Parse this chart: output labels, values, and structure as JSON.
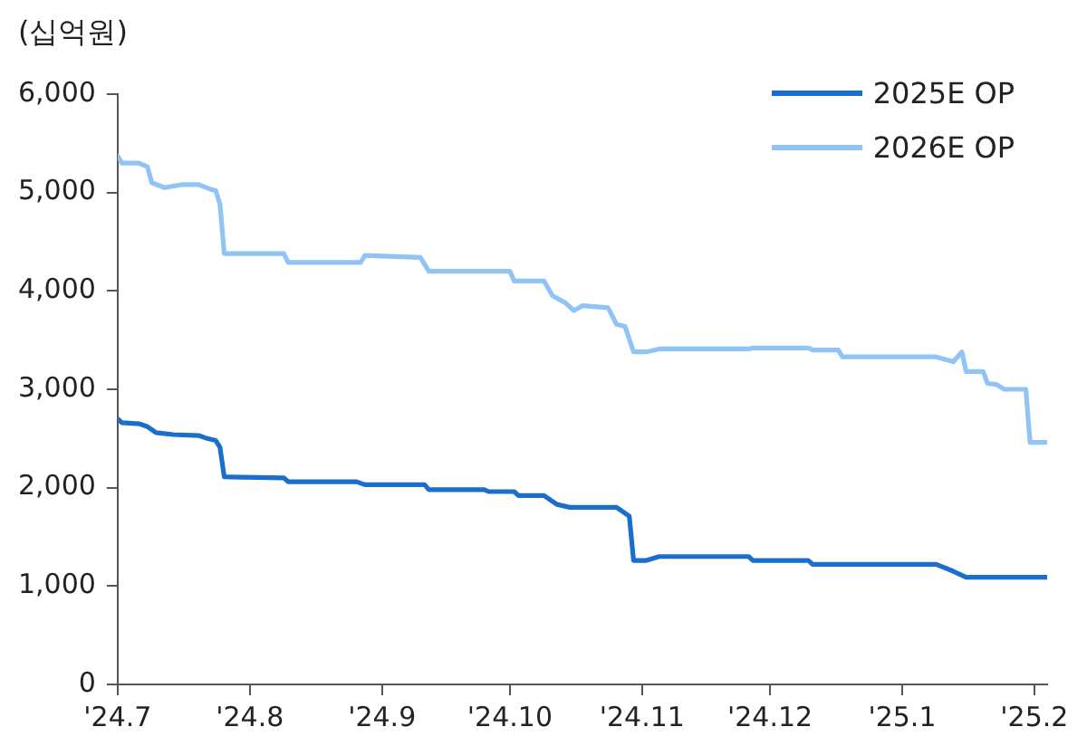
{
  "chart_data": {
    "type": "line",
    "ylabel": "(십억원)",
    "xlim": [
      "2024-07-01",
      "2025-02-04"
    ],
    "xticks": [
      {
        "value": "2024-07-01",
        "label": "'24.7"
      },
      {
        "value": "2024-08-01",
        "label": "'24.8"
      },
      {
        "value": "2024-09-01",
        "label": "'24.9"
      },
      {
        "value": "2024-10-01",
        "label": "'24.10"
      },
      {
        "value": "2024-11-01",
        "label": "'24.11"
      },
      {
        "value": "2024-12-01",
        "label": "'24.12"
      },
      {
        "value": "2025-01-01",
        "label": "'25.1"
      },
      {
        "value": "2025-02-01",
        "label": "'25.2"
      }
    ],
    "ylim": [
      0,
      6000
    ],
    "yticks": [
      {
        "value": 0,
        "label": "0"
      },
      {
        "value": 1000,
        "label": "1,000"
      },
      {
        "value": 2000,
        "label": "2,000"
      },
      {
        "value": 3000,
        "label": "3,000"
      },
      {
        "value": 4000,
        "label": "4,000"
      },
      {
        "value": 5000,
        "label": "5,000"
      },
      {
        "value": 6000,
        "label": "6,000"
      }
    ],
    "grid": false,
    "legend": "top right",
    "marker": "none",
    "line_style": "solid",
    "series": [
      {
        "name": "2025E OP",
        "color": "#1a6fcc",
        "x": [
          "2024-07-01",
          "2024-07-02",
          "2024-07-06",
          "2024-07-08",
          "2024-07-10",
          "2024-07-14",
          "2024-07-20",
          "2024-07-22",
          "2024-07-24",
          "2024-07-25",
          "2024-07-26",
          "2024-08-09",
          "2024-08-10",
          "2024-08-26",
          "2024-08-28",
          "2024-09-11",
          "2024-09-12",
          "2024-09-25",
          "2024-09-26",
          "2024-10-02",
          "2024-10-03",
          "2024-10-09",
          "2024-10-12",
          "2024-10-15",
          "2024-10-26",
          "2024-10-29",
          "2024-10-30",
          "2024-11-02",
          "2024-11-05",
          "2024-11-26",
          "2024-11-27",
          "2024-12-10",
          "2024-12-11",
          "2025-01-09",
          "2025-01-13",
          "2025-01-16",
          "2025-02-04"
        ],
        "values": [
          2700,
          2660,
          2650,
          2620,
          2560,
          2540,
          2530,
          2500,
          2480,
          2410,
          2110,
          2100,
          2060,
          2060,
          2030,
          2030,
          1980,
          1980,
          1960,
          1960,
          1920,
          1920,
          1830,
          1800,
          1800,
          1710,
          1260,
          1260,
          1300,
          1300,
          1260,
          1260,
          1220,
          1220,
          1150,
          1090,
          1090
        ]
      },
      {
        "name": "2026E OP",
        "color": "#90c4f5",
        "x": [
          "2024-07-01",
          "2024-07-02",
          "2024-07-06",
          "2024-07-08",
          "2024-07-09",
          "2024-07-12",
          "2024-07-16",
          "2024-07-20",
          "2024-07-23",
          "2024-07-24",
          "2024-07-25",
          "2024-07-26",
          "2024-08-09",
          "2024-08-10",
          "2024-08-27",
          "2024-08-28",
          "2024-09-10",
          "2024-09-12",
          "2024-10-01",
          "2024-10-02",
          "2024-10-09",
          "2024-10-11",
          "2024-10-14",
          "2024-10-16",
          "2024-10-18",
          "2024-10-24",
          "2024-10-26",
          "2024-10-28",
          "2024-10-30",
          "2024-11-02",
          "2024-11-05",
          "2024-11-26",
          "2024-11-27",
          "2024-12-10",
          "2024-12-11",
          "2024-12-17",
          "2024-12-18",
          "2025-01-09",
          "2025-01-13",
          "2025-01-15",
          "2025-01-16",
          "2025-01-20",
          "2025-01-21",
          "2025-01-23",
          "2025-01-25",
          "2025-01-30",
          "2025-01-31",
          "2025-02-04"
        ],
        "values": [
          5370,
          5300,
          5300,
          5260,
          5100,
          5050,
          5080,
          5080,
          5030,
          5020,
          4880,
          4380,
          4380,
          4290,
          4290,
          4360,
          4340,
          4200,
          4200,
          4100,
          4100,
          3950,
          3880,
          3800,
          3850,
          3830,
          3660,
          3640,
          3380,
          3380,
          3410,
          3410,
          3420,
          3420,
          3400,
          3400,
          3330,
          3330,
          3280,
          3380,
          3180,
          3180,
          3060,
          3050,
          3000,
          3000,
          2460,
          2460
        ]
      }
    ]
  }
}
